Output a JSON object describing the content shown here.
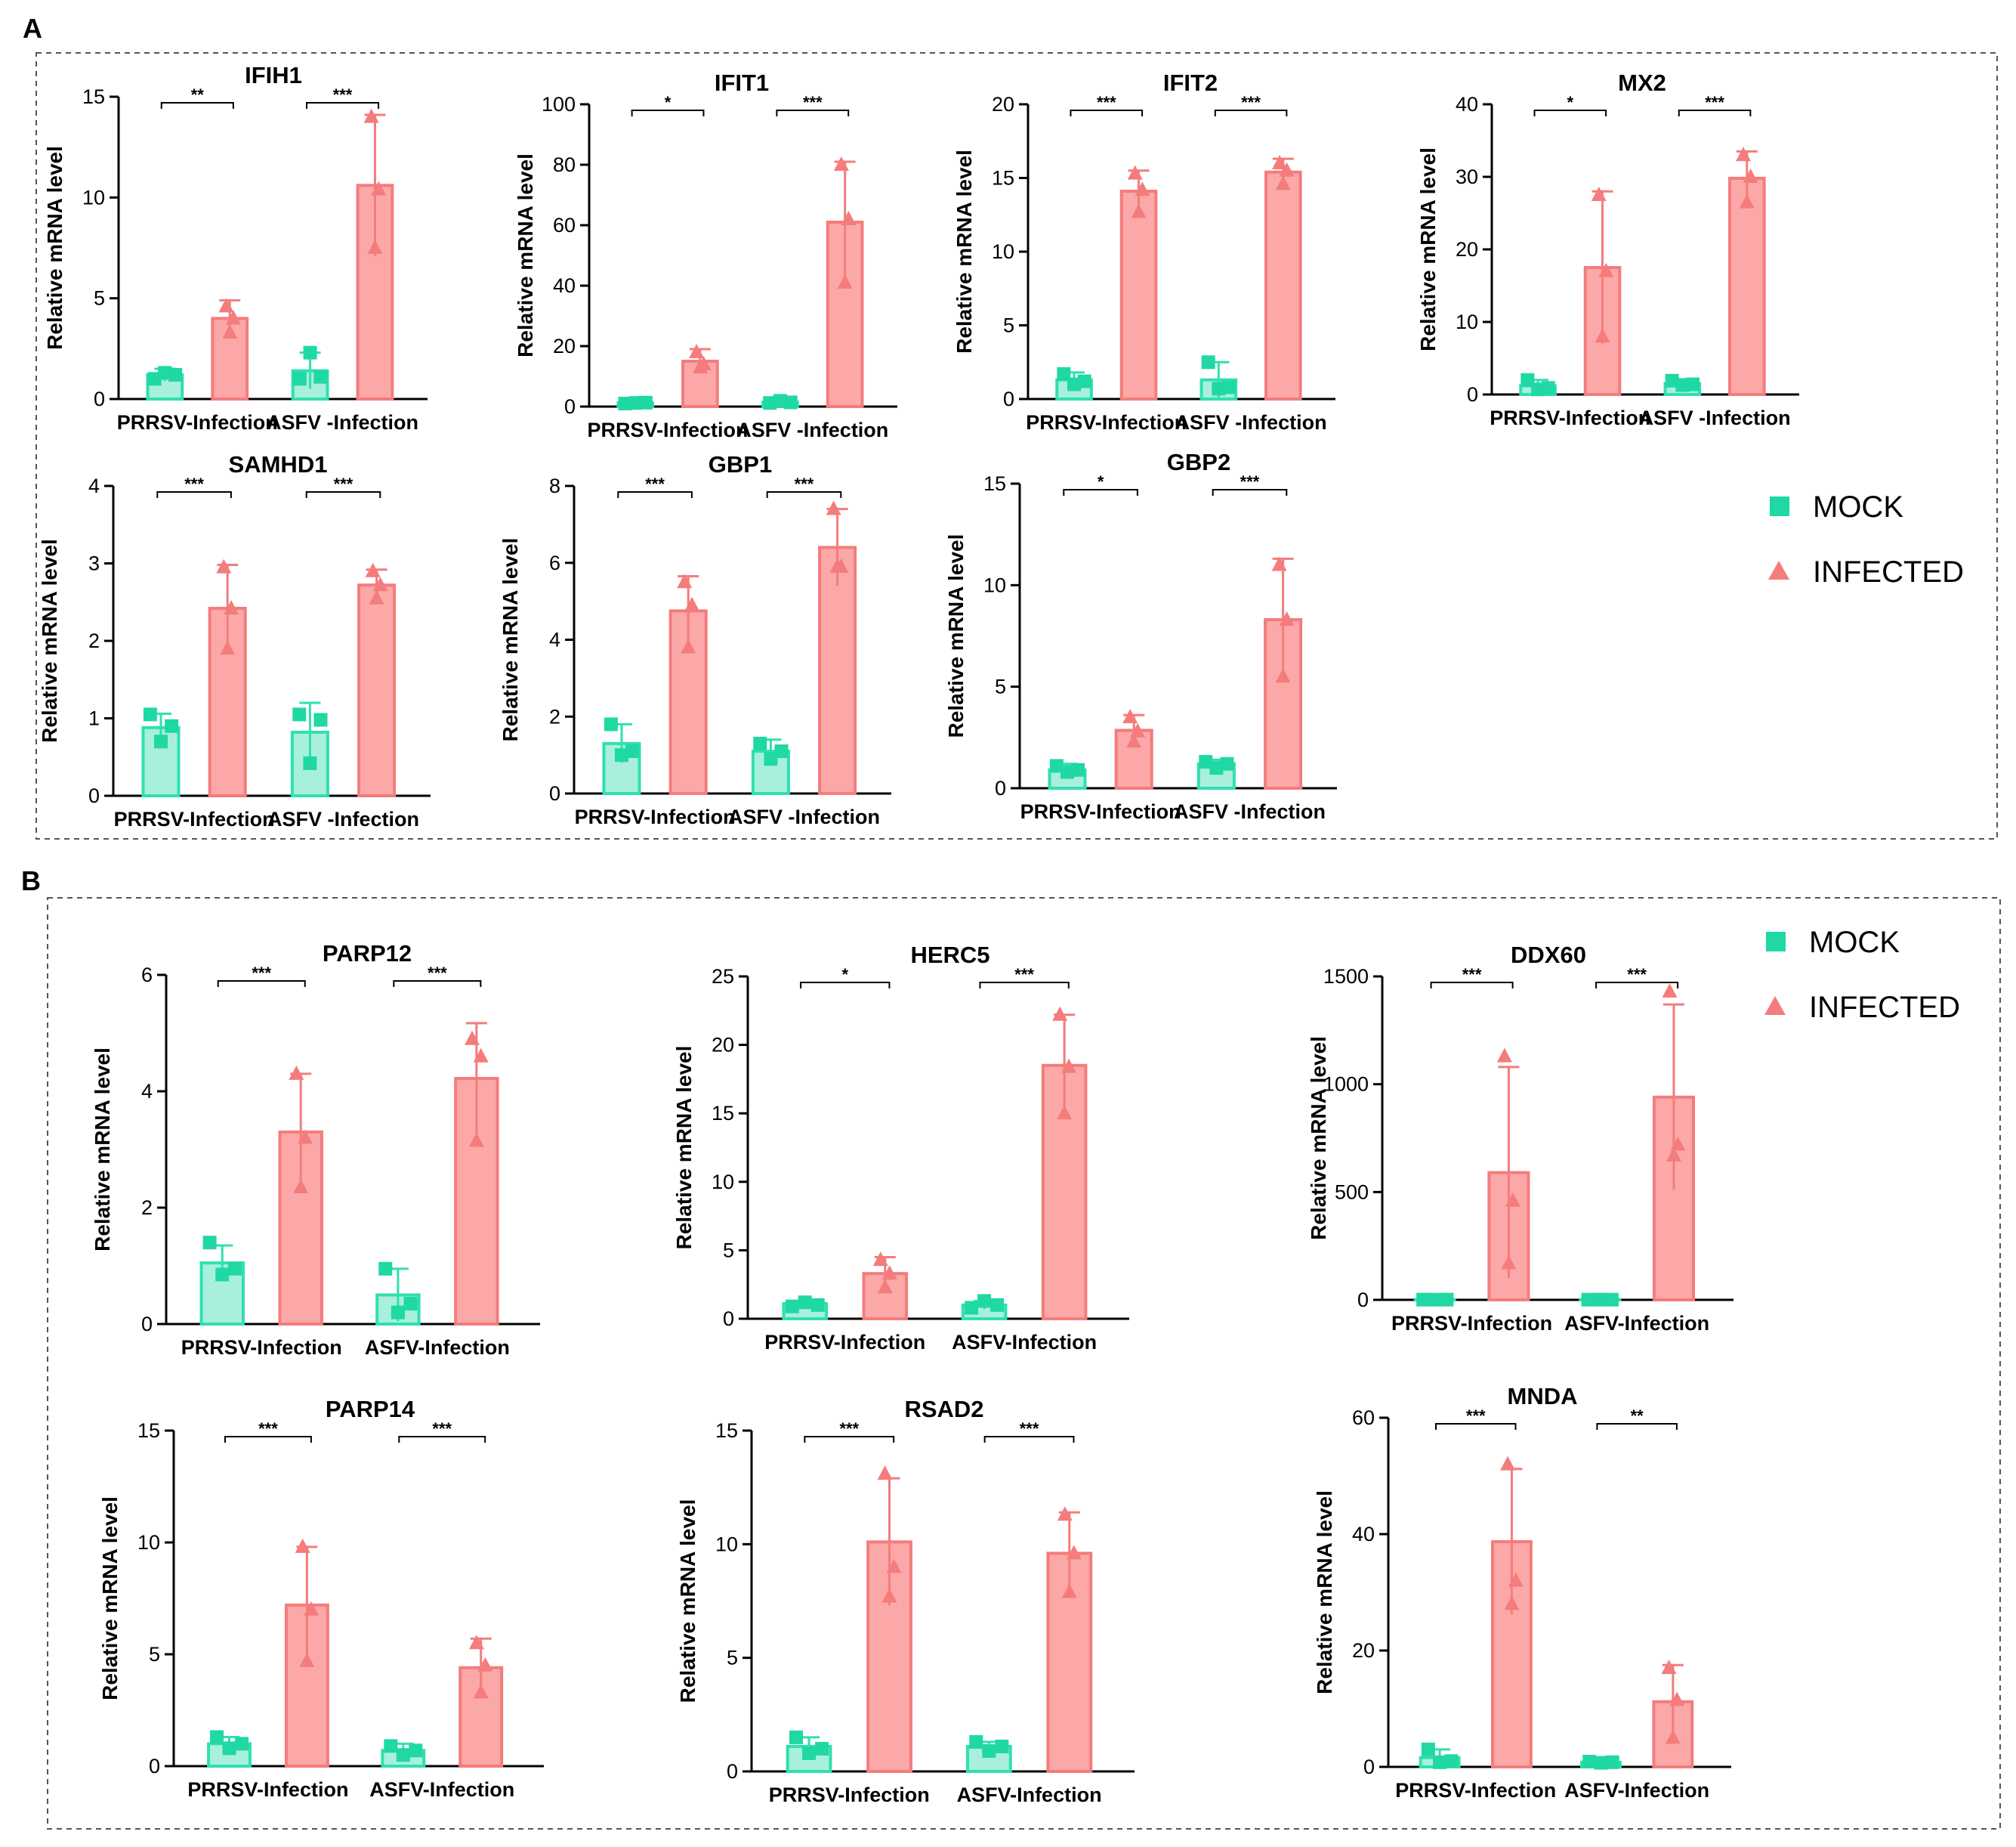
{
  "panels": [
    "A",
    "B"
  ],
  "colors": {
    "mock_fill": "#a8f0dc",
    "mock_stroke": "#2fe0b0",
    "mock_marker": "#1fd8a4",
    "infected_fill": "#fca8a8",
    "infected_stroke": "#f47c7c",
    "infected_marker": "#f47c7c"
  },
  "legend": {
    "mock": "MOCK",
    "infected": "INFECTED"
  },
  "ylabel": "Relative mRNA level",
  "chart_data": [
    {
      "title": "IFIH1",
      "type": "bar",
      "groups": [
        "PRRSV-Infection",
        "ASFV -Infection"
      ],
      "series": [
        {
          "name": "MOCK",
          "values": [
            1.2,
            1.4
          ],
          "err": [
            0.3,
            0.9
          ],
          "points": [
            [
              1.0,
              1.3,
              1.2
            ],
            [
              1.0,
              2.3,
              1.1
            ]
          ]
        },
        {
          "name": "INFECTED",
          "values": [
            4.0,
            10.6
          ],
          "err": [
            0.9,
            3.5
          ],
          "points": [
            [
              4.6,
              3.3,
              4.0
            ],
            [
              14.0,
              7.5,
              10.4
            ]
          ]
        }
      ],
      "ylim": [
        0,
        15
      ],
      "yticks": [
        0,
        5,
        10,
        15
      ],
      "significance": [
        "**",
        "***"
      ]
    },
    {
      "title": "IFIT1",
      "type": "bar",
      "groups": [
        "PRRSV-Infection",
        "ASFV -Infection"
      ],
      "series": [
        {
          "name": "MOCK",
          "values": [
            1.2,
            1.5
          ],
          "err": [
            0.4,
            0.5
          ],
          "points": [
            [
              1.0,
              1.2,
              1.3
            ],
            [
              1.2,
              1.9,
              1.4
            ]
          ]
        },
        {
          "name": "INFECTED",
          "values": [
            15.0,
            61.0
          ],
          "err": [
            4.0,
            20.0
          ],
          "points": [
            [
              18.0,
              13.0,
              14.0
            ],
            [
              80.0,
              41.0,
              62.0
            ]
          ]
        }
      ],
      "ylim": [
        0,
        100
      ],
      "yticks": [
        0,
        20,
        40,
        60,
        80,
        100
      ],
      "significance": [
        "*",
        "***"
      ]
    },
    {
      "title": "IFIT2",
      "type": "bar",
      "groups": [
        "PRRSV-Infection",
        "ASFV -Infection"
      ],
      "series": [
        {
          "name": "MOCK",
          "values": [
            1.3,
            1.3
          ],
          "err": [
            0.5,
            1.2
          ],
          "points": [
            [
              1.7,
              1.0,
              1.2
            ],
            [
              2.5,
              0.7,
              0.8
            ]
          ]
        },
        {
          "name": "INFECTED",
          "values": [
            14.1,
            15.4
          ],
          "err": [
            1.4,
            0.9
          ],
          "points": [
            [
              15.3,
              12.7,
              14.2
            ],
            [
              16.0,
              14.6,
              15.5
            ]
          ]
        }
      ],
      "ylim": [
        0,
        20
      ],
      "yticks": [
        0,
        5,
        10,
        15,
        20
      ],
      "significance": [
        "***",
        "***"
      ]
    },
    {
      "title": "MX2",
      "type": "bar",
      "groups": [
        "PRRSV-Infection",
        "ASFV -Infection"
      ],
      "series": [
        {
          "name": "MOCK",
          "values": [
            1.2,
            1.5
          ],
          "err": [
            0.8,
            0.6
          ],
          "points": [
            [
              2.0,
              0.7,
              0.9
            ],
            [
              1.9,
              1.3,
              1.4
            ]
          ]
        },
        {
          "name": "INFECTED",
          "values": [
            17.5,
            29.8
          ],
          "err": [
            10.5,
            3.7
          ],
          "points": [
            [
              27.5,
              8.0,
              17.0
            ],
            [
              33.0,
              26.5,
              30.0
            ]
          ]
        }
      ],
      "ylim": [
        0,
        40
      ],
      "yticks": [
        0,
        10,
        20,
        30,
        40
      ],
      "significance": [
        "*",
        "***"
      ]
    },
    {
      "title": "SAMHD1",
      "type": "bar",
      "groups": [
        "PRRSV-Infection",
        "ASFV -Infection"
      ],
      "series": [
        {
          "name": "MOCK",
          "values": [
            0.88,
            0.82
          ],
          "err": [
            0.18,
            0.38
          ],
          "points": [
            [
              1.05,
              0.7,
              0.9
            ],
            [
              1.05,
              0.42,
              0.98
            ]
          ]
        },
        {
          "name": "INFECTED",
          "values": [
            2.42,
            2.72
          ],
          "err": [
            0.56,
            0.2
          ],
          "points": [
            [
              2.95,
              1.9,
              2.42
            ],
            [
              2.9,
              2.55,
              2.72
            ]
          ]
        }
      ],
      "ylim": [
        0,
        4
      ],
      "yticks": [
        0,
        1,
        2,
        3,
        4
      ],
      "significance": [
        "***",
        "***"
      ]
    },
    {
      "title": "GBP1",
      "type": "bar",
      "groups": [
        "PRRSV-Infection",
        "ASFV -Infection"
      ],
      "series": [
        {
          "name": "MOCK",
          "values": [
            1.3,
            1.1
          ],
          "err": [
            0.5,
            0.3
          ],
          "points": [
            [
              1.8,
              1.0,
              1.1
            ],
            [
              1.3,
              0.9,
              1.1
            ]
          ]
        },
        {
          "name": "INFECTED",
          "values": [
            4.75,
            6.4
          ],
          "err": [
            0.9,
            1.0
          ],
          "points": [
            [
              5.5,
              3.8,
              4.9
            ],
            [
              7.4,
              5.9,
              5.9
            ]
          ]
        }
      ],
      "ylim": [
        0,
        8
      ],
      "yticks": [
        0,
        2,
        4,
        6,
        8
      ],
      "significance": [
        "***",
        "***"
      ]
    },
    {
      "title": "GBP2",
      "type": "bar",
      "groups": [
        "PRRSV-Infection",
        "ASFV -Infection"
      ],
      "series": [
        {
          "name": "MOCK",
          "values": [
            0.9,
            1.2
          ],
          "err": [
            0.3,
            0.2
          ],
          "points": [
            [
              1.1,
              0.8,
              0.9
            ],
            [
              1.3,
              1.0,
              1.2
            ]
          ]
        },
        {
          "name": "INFECTED",
          "values": [
            2.85,
            8.3
          ],
          "err": [
            0.75,
            3.0
          ],
          "points": [
            [
              3.5,
              2.3,
              2.8
            ],
            [
              11.0,
              5.5,
              8.3
            ]
          ]
        }
      ],
      "ylim": [
        0,
        15
      ],
      "yticks": [
        0,
        5,
        10,
        15
      ],
      "significance": [
        "*",
        "***"
      ]
    },
    {
      "title": "PARP12",
      "type": "bar",
      "groups": [
        "PRRSV-Infection",
        "ASFV-Infection"
      ],
      "series": [
        {
          "name": "MOCK",
          "values": [
            1.05,
            0.5
          ],
          "err": [
            0.3,
            0.45
          ],
          "points": [
            [
              1.4,
              0.85,
              0.95
            ],
            [
              0.95,
              0.2,
              0.35
            ]
          ]
        },
        {
          "name": "INFECTED",
          "values": [
            3.3,
            4.22
          ],
          "err": [
            1.0,
            0.95
          ],
          "points": [
            [
              4.3,
              2.35,
              3.2
            ],
            [
              4.9,
              3.15,
              4.6
            ]
          ]
        }
      ],
      "ylim": [
        0,
        6
      ],
      "yticks": [
        0,
        2,
        4,
        6
      ],
      "significance": [
        "***",
        "***"
      ]
    },
    {
      "title": "HERC5",
      "type": "bar",
      "groups": [
        "PRRSV-Infection",
        "ASFV-Infection"
      ],
      "series": [
        {
          "name": "MOCK",
          "values": [
            1.1,
            1.0
          ],
          "err": [
            0.2,
            0.3
          ],
          "points": [
            [
              0.9,
              1.2,
              1.0
            ],
            [
              0.8,
              1.3,
              1.0
            ]
          ]
        },
        {
          "name": "INFECTED",
          "values": [
            3.3,
            18.5
          ],
          "err": [
            1.2,
            3.7
          ],
          "points": [
            [
              4.3,
              2.3,
              3.3
            ],
            [
              22.2,
              15.0,
              18.4
            ]
          ]
        }
      ],
      "ylim": [
        0,
        25
      ],
      "yticks": [
        0,
        5,
        10,
        15,
        20,
        25
      ],
      "significance": [
        "*",
        "***"
      ]
    },
    {
      "title": "DDX60",
      "type": "bar",
      "groups": [
        "PRRSV-Infection",
        "ASFV-Infection"
      ],
      "series": [
        {
          "name": "MOCK",
          "values": [
            1,
            1
          ],
          "err": [
            0,
            0
          ],
          "points": [
            [
              1,
              1,
              1
            ],
            [
              1,
              1,
              1
            ]
          ]
        },
        {
          "name": "INFECTED",
          "values": [
            590,
            940
          ],
          "err": [
            490,
            430
          ],
          "points": [
            [
              1130,
              170,
              460
            ],
            [
              1430,
              670,
              720
            ]
          ]
        }
      ],
      "ylim": [
        0,
        1500
      ],
      "yticks": [
        0,
        500,
        1000,
        1500
      ],
      "significance": [
        "***",
        "***"
      ]
    },
    {
      "title": "PARP14",
      "type": "bar",
      "groups": [
        "PRRSV-Infection",
        "ASFV-Infection"
      ],
      "series": [
        {
          "name": "MOCK",
          "values": [
            1.0,
            0.7
          ],
          "err": [
            0.3,
            0.3
          ],
          "points": [
            [
              1.3,
              0.8,
              1.0
            ],
            [
              0.9,
              0.5,
              0.7
            ]
          ]
        },
        {
          "name": "INFECTED",
          "values": [
            7.2,
            4.4
          ],
          "err": [
            2.6,
            1.3
          ],
          "points": [
            [
              9.8,
              4.7,
              7.0
            ],
            [
              5.5,
              3.3,
              4.5
            ]
          ]
        }
      ],
      "ylim": [
        0,
        15
      ],
      "yticks": [
        0,
        5,
        10,
        15
      ],
      "significance": [
        "***",
        "***"
      ]
    },
    {
      "title": "RSAD2",
      "type": "bar",
      "groups": [
        "PRRSV-Infection",
        "ASFV-Infection"
      ],
      "series": [
        {
          "name": "MOCK",
          "values": [
            1.1,
            1.1
          ],
          "err": [
            0.4,
            0.2
          ],
          "points": [
            [
              1.5,
              0.8,
              1.0
            ],
            [
              1.3,
              0.9,
              1.1
            ]
          ]
        },
        {
          "name": "INFECTED",
          "values": [
            10.1,
            9.6
          ],
          "err": [
            2.8,
            1.8
          ],
          "points": [
            [
              13.1,
              7.7,
              9.0
            ],
            [
              11.3,
              7.9,
              9.6
            ]
          ]
        }
      ],
      "ylim": [
        0,
        15
      ],
      "yticks": [
        0,
        5,
        10,
        15
      ],
      "significance": [
        "***",
        "***"
      ]
    },
    {
      "title": "MNDA",
      "type": "bar",
      "groups": [
        "PRRSV-Infection",
        "ASFV-Infection"
      ],
      "series": [
        {
          "name": "MOCK",
          "values": [
            1.6,
            0.8
          ],
          "err": [
            1.4,
            0.2
          ],
          "points": [
            [
              3.0,
              0.8,
              1.0
            ],
            [
              0.9,
              0.7,
              0.8
            ]
          ]
        },
        {
          "name": "INFECTED",
          "values": [
            38.7,
            11.2
          ],
          "err": [
            12.5,
            6.3
          ],
          "points": [
            [
              52.0,
              28.0,
              32.0
            ],
            [
              17.0,
              5.0,
              11.5
            ]
          ]
        }
      ],
      "ylim": [
        0,
        60
      ],
      "yticks": [
        0,
        20,
        40,
        60
      ],
      "significance": [
        "***",
        "**"
      ]
    }
  ]
}
